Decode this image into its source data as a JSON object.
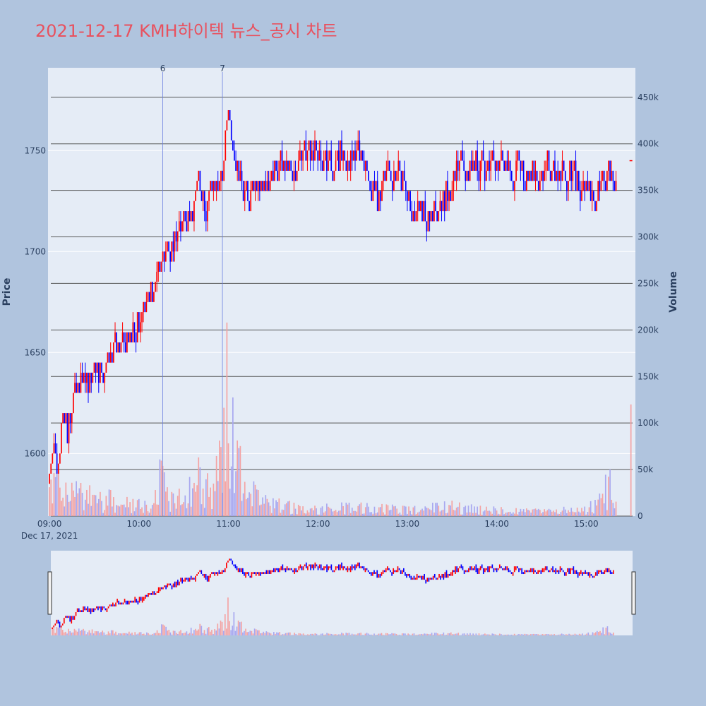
{
  "title": "2021-12-17 KMH하이텍 뉴스_공시 차트",
  "colors": {
    "page_bg": "#b0c4de",
    "plot_bg": "#e5ecf6",
    "title": "#e8515e",
    "up": "#ff0000",
    "down": "#0000ff",
    "up_volume": "#f4a3a3",
    "down_volume": "#a8a8f0",
    "news_line": "#6a7fe0",
    "volume_grid": "#555555",
    "price_grid": "#ffffff"
  },
  "chart_data": {
    "type": "candlestick",
    "date_label": "Dec 17, 2021",
    "x_ticks": [
      "09:00",
      "10:00",
      "11:00",
      "12:00",
      "13:00",
      "14:00",
      "15:00"
    ],
    "y_ticks": [
      "1600",
      "1650",
      "1700",
      "1750"
    ],
    "y_range": [
      1569,
      1791
    ],
    "y_title": "Price",
    "volume_ticks": [
      "0",
      "50k",
      "100k",
      "150k",
      "200k",
      "250k",
      "300k",
      "350k",
      "400k",
      "450k"
    ],
    "volume_range": [
      0,
      465000
    ],
    "volume_title": "Volume",
    "news_markers": [
      {
        "label": "6",
        "time": "10:16"
      },
      {
        "label": "7",
        "time": "10:56"
      }
    ],
    "time_range": [
      "08:59",
      "15:33"
    ],
    "price_path": [
      [
        "09:00",
        1585
      ],
      [
        "09:03",
        1600
      ],
      [
        "09:06",
        1590
      ],
      [
        "09:09",
        1620
      ],
      [
        "09:12",
        1610
      ],
      [
        "09:15",
        1625
      ],
      [
        "09:20",
        1640
      ],
      [
        "09:25",
        1630
      ],
      [
        "09:30",
        1645
      ],
      [
        "09:35",
        1635
      ],
      [
        "09:40",
        1650
      ],
      [
        "09:45",
        1655
      ],
      [
        "09:50",
        1650
      ],
      [
        "09:55",
        1660
      ],
      [
        "10:00",
        1665
      ],
      [
        "10:05",
        1675
      ],
      [
        "10:10",
        1680
      ],
      [
        "10:15",
        1690
      ],
      [
        "10:18",
        1705
      ],
      [
        "10:20",
        1695
      ],
      [
        "10:25",
        1710
      ],
      [
        "10:30",
        1715
      ],
      [
        "10:35",
        1720
      ],
      [
        "10:40",
        1730
      ],
      [
        "10:45",
        1725
      ],
      [
        "10:50",
        1730
      ],
      [
        "10:55",
        1735
      ],
      [
        "11:00",
        1765
      ],
      [
        "11:03",
        1755
      ],
      [
        "11:05",
        1745
      ],
      [
        "11:10",
        1730
      ],
      [
        "11:15",
        1725
      ],
      [
        "11:20",
        1735
      ],
      [
        "11:25",
        1730
      ],
      [
        "11:30",
        1740
      ],
      [
        "11:35",
        1745
      ],
      [
        "11:40",
        1738
      ],
      [
        "11:45",
        1742
      ],
      [
        "11:50",
        1748
      ],
      [
        "11:55",
        1745
      ],
      [
        "12:00",
        1752
      ],
      [
        "12:05",
        1745
      ],
      [
        "12:10",
        1740
      ],
      [
        "12:15",
        1748
      ],
      [
        "12:20",
        1745
      ],
      [
        "12:25",
        1750
      ],
      [
        "12:30",
        1740
      ],
      [
        "12:35",
        1735
      ],
      [
        "12:40",
        1725
      ],
      [
        "12:45",
        1735
      ],
      [
        "12:50",
        1742
      ],
      [
        "12:55",
        1740
      ],
      [
        "13:00",
        1730
      ],
      [
        "13:05",
        1725
      ],
      [
        "13:10",
        1720
      ],
      [
        "13:15",
        1718
      ],
      [
        "13:20",
        1722
      ],
      [
        "13:25",
        1728
      ],
      [
        "13:30",
        1735
      ],
      [
        "13:35",
        1745
      ],
      [
        "13:40",
        1740
      ],
      [
        "13:45",
        1745
      ],
      [
        "13:50",
        1740
      ],
      [
        "13:55",
        1745
      ],
      [
        "14:00",
        1742
      ],
      [
        "14:05",
        1740
      ],
      [
        "14:10",
        1738
      ],
      [
        "14:15",
        1742
      ],
      [
        "14:20",
        1740
      ],
      [
        "14:25",
        1738
      ],
      [
        "14:30",
        1742
      ],
      [
        "14:35",
        1738
      ],
      [
        "14:40",
        1736
      ],
      [
        "14:45",
        1740
      ],
      [
        "14:50",
        1738
      ],
      [
        "14:55",
        1735
      ],
      [
        "15:00",
        1732
      ],
      [
        "15:05",
        1730
      ],
      [
        "15:10",
        1735
      ],
      [
        "15:15",
        1742
      ],
      [
        "15:18",
        1738
      ],
      [
        "15:20",
        1734
      ]
    ],
    "volume_path": [
      [
        "09:00",
        30000
      ],
      [
        "09:05",
        40000
      ],
      [
        "09:10",
        35000
      ],
      [
        "09:20",
        25000
      ],
      [
        "09:30",
        22000
      ],
      [
        "09:40",
        20000
      ],
      [
        "09:50",
        18000
      ],
      [
        "10:00",
        16000
      ],
      [
        "10:10",
        18000
      ],
      [
        "10:15",
        60000
      ],
      [
        "10:20",
        25000
      ],
      [
        "10:30",
        30000
      ],
      [
        "10:40",
        45000
      ],
      [
        "10:50",
        25000
      ],
      [
        "10:55",
        80000
      ],
      [
        "11:00",
        200000
      ],
      [
        "11:02",
        120000
      ],
      [
        "11:05",
        70000
      ],
      [
        "11:10",
        40000
      ],
      [
        "11:20",
        20000
      ],
      [
        "11:30",
        14000
      ],
      [
        "11:45",
        12000
      ],
      [
        "12:00",
        10000
      ],
      [
        "12:30",
        11000
      ],
      [
        "13:00",
        8000
      ],
      [
        "13:30",
        12000
      ],
      [
        "13:45",
        9000
      ],
      [
        "14:00",
        7000
      ],
      [
        "14:30",
        6000
      ],
      [
        "15:00",
        8000
      ],
      [
        "15:10",
        20000
      ],
      [
        "15:15",
        40000
      ],
      [
        "15:20",
        25000
      ]
    ],
    "close_auction": {
      "time": "15:30",
      "price": 1745,
      "volume": 120000
    }
  }
}
